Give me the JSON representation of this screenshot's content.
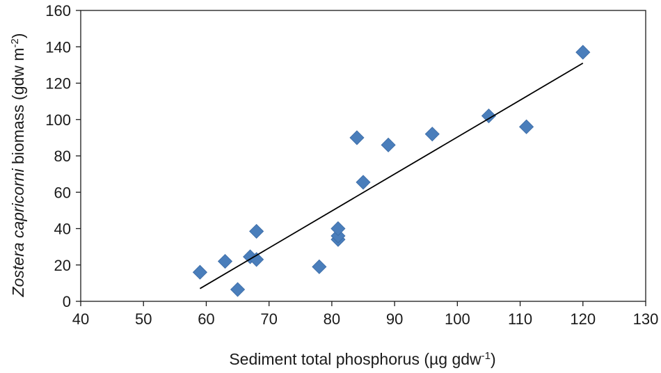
{
  "chart_data": {
    "type": "scatter",
    "xlabel": {
      "parts": [
        {
          "text": "Sediment total phosphorus (µg gdw",
          "style": "normal"
        },
        {
          "text": "-1",
          "style": "sup"
        },
        {
          "text": ")",
          "style": "normal"
        }
      ]
    },
    "ylabel": {
      "parts": [
        {
          "text": "Zostera capricorni",
          "style": "italic"
        },
        {
          "text": " biomass (gdw m",
          "style": "normal"
        },
        {
          "text": "-2",
          "style": "sup"
        },
        {
          "text": ")",
          "style": "normal"
        }
      ]
    },
    "xlim": [
      40,
      130
    ],
    "ylim": [
      0,
      160
    ],
    "x_ticks": [
      40,
      50,
      60,
      70,
      80,
      90,
      100,
      110,
      120,
      130
    ],
    "y_ticks": [
      0,
      20,
      40,
      60,
      80,
      100,
      120,
      140,
      160
    ],
    "grid": false,
    "legend": "none",
    "series": [
      {
        "marker": "diamond",
        "color": "#4a7ebb",
        "points": [
          {
            "x": 59,
            "y": 16
          },
          {
            "x": 63,
            "y": 22
          },
          {
            "x": 65,
            "y": 6.5
          },
          {
            "x": 67,
            "y": 24.5
          },
          {
            "x": 68,
            "y": 23
          },
          {
            "x": 68,
            "y": 38.5
          },
          {
            "x": 78,
            "y": 19
          },
          {
            "x": 81,
            "y": 34
          },
          {
            "x": 81,
            "y": 36
          },
          {
            "x": 81,
            "y": 40
          },
          {
            "x": 84,
            "y": 90
          },
          {
            "x": 85,
            "y": 65.5
          },
          {
            "x": 89,
            "y": 86
          },
          {
            "x": 96,
            "y": 92
          },
          {
            "x": 105,
            "y": 102
          },
          {
            "x": 111,
            "y": 96
          },
          {
            "x": 120,
            "y": 137
          }
        ]
      }
    ],
    "trendline": {
      "type": "linear",
      "color": "#000000",
      "start": {
        "x": 59,
        "y": 7
      },
      "end": {
        "x": 120,
        "y": 131
      }
    }
  }
}
